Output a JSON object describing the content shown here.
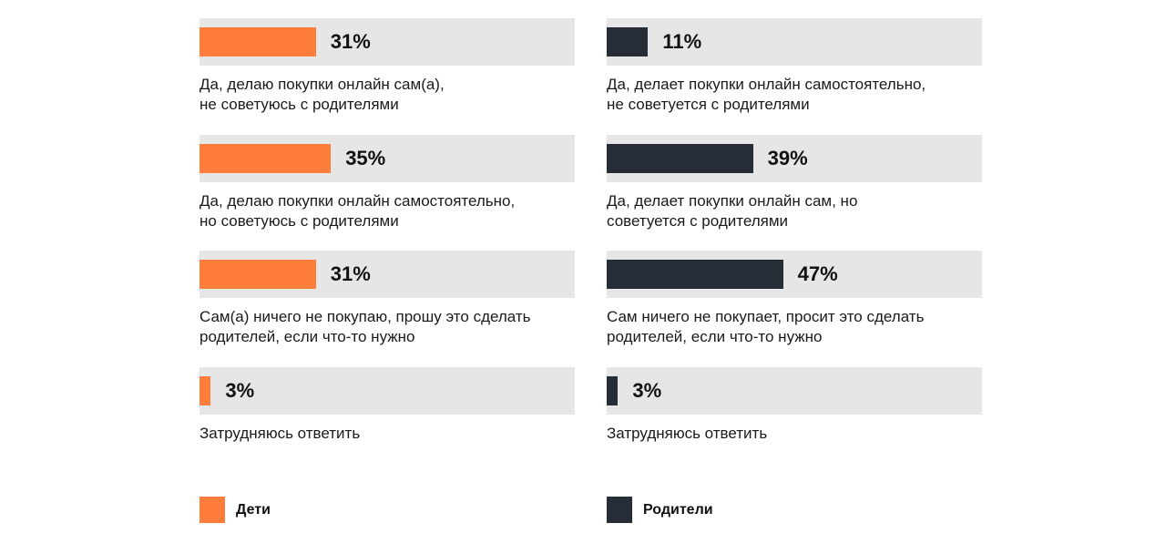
{
  "chart_data": [
    {
      "type": "bar",
      "series": [
        {
          "name": "Дети",
          "values": [
            31,
            35,
            31,
            3
          ]
        }
      ],
      "value_labels": [
        "31%",
        "35%",
        "31%",
        "3%"
      ],
      "categories": [
        "Да, делаю покупки онлайн сам(а),\nне советуюсь с родителями",
        "Да, делаю покупки онлайн самостоятельно,\nно советуюсь с родителями",
        "Сам(а) ничего не покупаю, прошу это сделать\nродителей, если что-то нужно",
        "Затрудняюсь ответить"
      ],
      "xlim": [
        0,
        100
      ],
      "color": "#ff7d3a"
    },
    {
      "type": "bar",
      "series": [
        {
          "name": "Родители",
          "values": [
            11,
            39,
            47,
            3
          ]
        }
      ],
      "value_labels": [
        "11%",
        "39%",
        "47%",
        "3%"
      ],
      "categories": [
        "Да, делает покупки онлайн самостоятельно,\nне советуется с родителями",
        "Да, делает покупки онлайн сам, но\nсоветуется с родителями",
        "Сам ничего не покупает, просит это сделать\nродителей, если что-то нужно",
        "Затрудняюсь ответить"
      ],
      "xlim": [
        0,
        100
      ],
      "color": "#262d36"
    }
  ],
  "legend": [
    {
      "label": "Дети",
      "color": "#ff7d3a"
    },
    {
      "label": "Родители",
      "color": "#262d36"
    }
  ]
}
